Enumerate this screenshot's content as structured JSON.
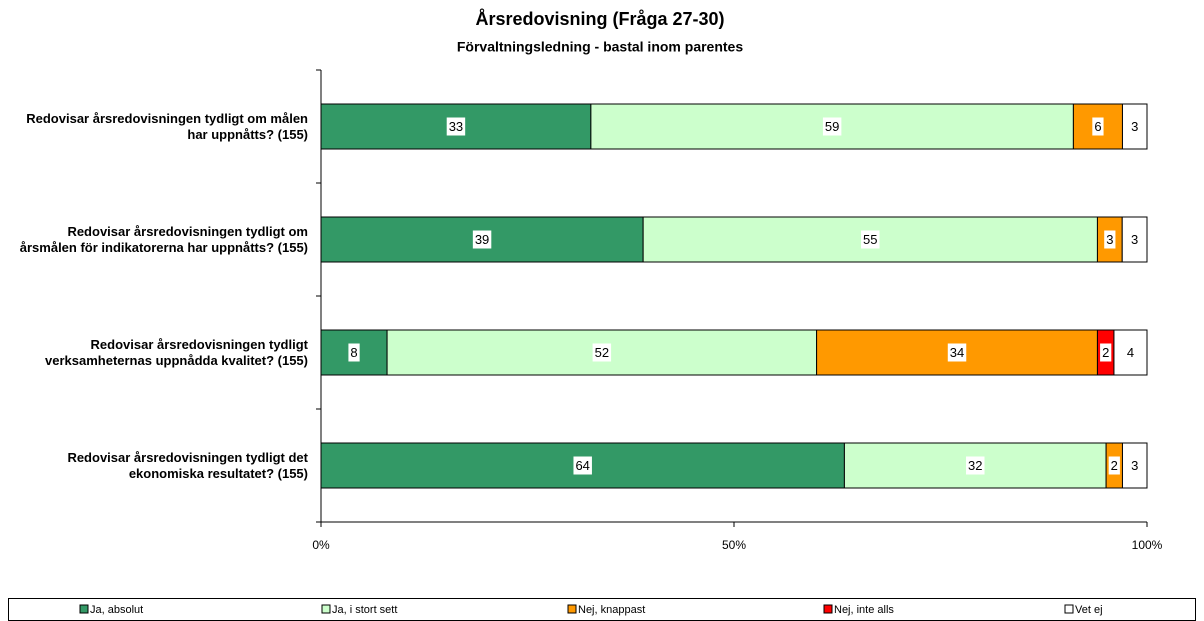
{
  "chart_data": {
    "type": "bar",
    "orientation": "horizontal",
    "stacked": "percent",
    "title": "Årsredovisning (Fråga 27-30)",
    "subtitle": "Förvaltningsledning - bastal inom parentes",
    "categories": [
      "Redovisar årsredovisningen tydligt om målen har uppnåtts? (155)",
      "Redovisar årsredovisningen tydligt om årsmålen för indikatorerna har uppnåtts? (155)",
      "Redovisar årsredovisningen tydligt verksamheternas uppnådda kvalitet? (155)",
      "Redovisar årsredovisningen tydligt det ekonomiska resultatet? (155)"
    ],
    "series": [
      {
        "name": "Ja, absolut",
        "color": "#339966",
        "values": [
          33,
          39,
          8,
          64
        ]
      },
      {
        "name": "Ja, i stort sett",
        "color": "#ccffcc",
        "values": [
          59,
          55,
          52,
          32
        ]
      },
      {
        "name": "Nej, knappast",
        "color": "#ff9900",
        "values": [
          6,
          3,
          34,
          2
        ]
      },
      {
        "name": "Nej, inte alls",
        "color": "#ff0000",
        "values": [
          null,
          null,
          2,
          null
        ]
      },
      {
        "name": "Vet ej",
        "color": "#ffffff",
        "values": [
          3,
          3,
          4,
          3
        ]
      }
    ],
    "xlim": [
      0,
      100
    ],
    "xticks": [
      {
        "value": 0,
        "label": "0%"
      },
      {
        "value": 50,
        "label": "50%"
      },
      {
        "value": 100,
        "label": "100%"
      }
    ],
    "legend": "bottom"
  }
}
